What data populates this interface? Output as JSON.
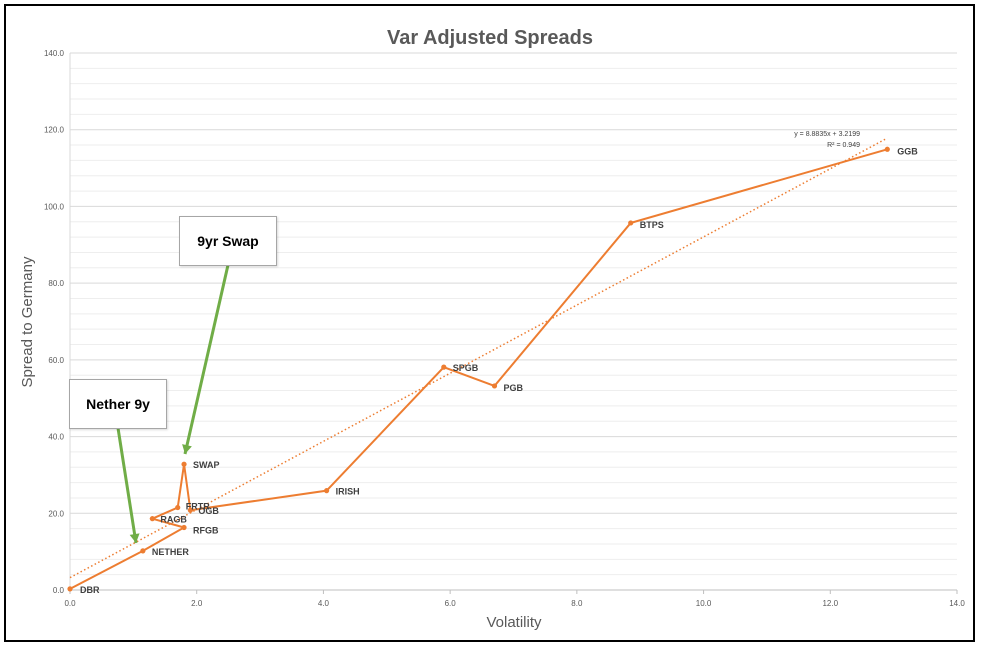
{
  "chart_data": {
    "type": "scatter",
    "title": "Var Adjusted Spreads",
    "xlabel": "Volatility",
    "ylabel": "Spread to Germany",
    "xlim": [
      0,
      14
    ],
    "ylim": [
      0,
      140
    ],
    "x_ticks": [
      "0.0",
      "2.0",
      "4.0",
      "6.0",
      "8.0",
      "10.0",
      "12.0",
      "14.0"
    ],
    "y_ticks": [
      "0.0",
      "20.0",
      "40.0",
      "60.0",
      "80.0",
      "100.0",
      "120.0",
      "140.0"
    ],
    "grid": true,
    "legend": "none",
    "series_color": "#ED7D31",
    "arrow_color": "#70AD47",
    "points": [
      {
        "label": "DBR",
        "x": 0.0,
        "y": 0.3
      },
      {
        "label": "NETHER",
        "x": 1.15,
        "y": 10.2
      },
      {
        "label": "RFGB",
        "x": 1.8,
        "y": 16.3
      },
      {
        "label": "RAGB",
        "x": 1.3,
        "y": 18.6
      },
      {
        "label": "FRTR",
        "x": 1.7,
        "y": 21.5
      },
      {
        "label": "SWAP",
        "x": 1.8,
        "y": 32.8
      },
      {
        "label": "OGB",
        "x": 1.9,
        "y": 20.8
      },
      {
        "label": "IRISH",
        "x": 4.05,
        "y": 25.9
      },
      {
        "label": "SPGB",
        "x": 5.9,
        "y": 58.1
      },
      {
        "label": "PGB",
        "x": 6.7,
        "y": 53.2
      },
      {
        "label": "BTPS",
        "x": 8.85,
        "y": 95.7
      },
      {
        "label": "GGB",
        "x": 12.9,
        "y": 114.9
      }
    ],
    "trendline": {
      "equation": "y = 8.8835x + 3.2199",
      "r_squared": "R² = 0.949",
      "slope": 8.8835,
      "intercept": 3.2199,
      "x_range": [
        0,
        12.9
      ]
    },
    "annotations": [
      {
        "text": "9yr Swap",
        "target": "SWAP"
      },
      {
        "text": "Nether 9y",
        "target": "NETHER"
      }
    ]
  },
  "callouts": {
    "swap": "9yr Swap",
    "nether": "Nether 9y"
  }
}
